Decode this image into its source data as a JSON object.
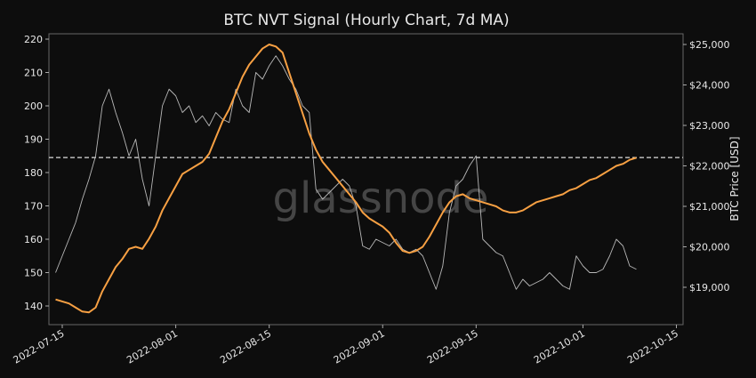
{
  "chart_data": {
    "type": "line",
    "title": "BTC NVT Signal (Hourly Chart, 7d MA)",
    "y2label": "BTC Price [USD]",
    "watermark": "glassnode",
    "x": [
      "2022-07-14",
      "2022-07-15",
      "2022-07-16",
      "2022-07-17",
      "2022-07-18",
      "2022-07-19",
      "2022-07-20",
      "2022-07-21",
      "2022-07-22",
      "2022-07-23",
      "2022-07-24",
      "2022-07-25",
      "2022-07-26",
      "2022-07-27",
      "2022-07-28",
      "2022-07-29",
      "2022-07-30",
      "2022-07-31",
      "2022-08-01",
      "2022-08-02",
      "2022-08-03",
      "2022-08-04",
      "2022-08-05",
      "2022-08-06",
      "2022-08-07",
      "2022-08-08",
      "2022-08-09",
      "2022-08-10",
      "2022-08-11",
      "2022-08-12",
      "2022-08-13",
      "2022-08-14",
      "2022-08-15",
      "2022-08-16",
      "2022-08-17",
      "2022-08-18",
      "2022-08-19",
      "2022-08-20",
      "2022-08-21",
      "2022-08-22",
      "2022-08-23",
      "2022-08-24",
      "2022-08-25",
      "2022-08-26",
      "2022-08-27",
      "2022-08-28",
      "2022-08-29",
      "2022-08-30",
      "2022-08-31",
      "2022-09-01",
      "2022-09-02",
      "2022-09-03",
      "2022-09-04",
      "2022-09-05",
      "2022-09-06",
      "2022-09-07",
      "2022-09-08",
      "2022-09-09",
      "2022-09-10",
      "2022-09-11",
      "2022-09-12",
      "2022-09-13",
      "2022-09-14",
      "2022-09-15",
      "2022-09-16",
      "2022-09-17",
      "2022-09-18",
      "2022-09-19",
      "2022-09-20",
      "2022-09-21",
      "2022-09-22",
      "2022-09-23",
      "2022-09-24",
      "2022-09-25",
      "2022-09-26",
      "2022-09-27",
      "2022-09-28",
      "2022-09-29",
      "2022-09-30",
      "2022-10-01",
      "2022-10-02",
      "2022-10-03",
      "2022-10-04",
      "2022-10-05",
      "2022-10-06",
      "2022-10-07",
      "2022-10-08",
      "2022-10-09"
    ],
    "series": [
      {
        "color": "#b8b8b8",
        "values": [
          150,
          155,
          160,
          165,
          172,
          178,
          185,
          200,
          205,
          198,
          192,
          185,
          190,
          178,
          170,
          185,
          200,
          205,
          203,
          198,
          200,
          195,
          197,
          194,
          198,
          196,
          195,
          205,
          200,
          198,
          210,
          208,
          212,
          215,
          212,
          208,
          205,
          200,
          198,
          175,
          172,
          174,
          176,
          178,
          176,
          170,
          158,
          157,
          160,
          159,
          158,
          160,
          157,
          156,
          157,
          155,
          150,
          145,
          152,
          168,
          176,
          178,
          182,
          185,
          160,
          158,
          156,
          155,
          150,
          145,
          148,
          146,
          147,
          148,
          150,
          148,
          146,
          145,
          155,
          152,
          150,
          150,
          151,
          155,
          160,
          158,
          152,
          151
        ]
      },
      {
        "color": "#f7a043",
        "axis": "y2",
        "values": [
          18700,
          18650,
          18600,
          18500,
          18400,
          18380,
          18500,
          18900,
          19200,
          19500,
          19700,
          19950,
          20000,
          19950,
          20200,
          20500,
          20900,
          21200,
          21500,
          21800,
          21900,
          22000,
          22100,
          22300,
          22700,
          23100,
          23400,
          23800,
          24200,
          24500,
          24700,
          24900,
          25000,
          24950,
          24800,
          24300,
          23800,
          23300,
          22800,
          22400,
          22100,
          21900,
          21700,
          21500,
          21300,
          21100,
          20850,
          20700,
          20600,
          20500,
          20350,
          20100,
          19900,
          19850,
          19900,
          20000,
          20250,
          20550,
          20850,
          21100,
          21250,
          21300,
          21200,
          21150,
          21100,
          21050,
          21000,
          20900,
          20850,
          20850,
          20900,
          21000,
          21100,
          21150,
          21200,
          21250,
          21300,
          21400,
          21450,
          21550,
          21650,
          21700,
          21800,
          21900,
          22000,
          22050,
          22150,
          22200
        ]
      }
    ],
    "xlim": [
      "2022-07-13",
      "2022-10-16"
    ],
    "xticks": [
      "2022-07-15",
      "2022-08-01",
      "2022-08-15",
      "2022-09-01",
      "2022-09-15",
      "2022-10-01",
      "2022-10-15"
    ],
    "ylim": [
      134.4,
      221.6
    ],
    "yticks": [
      140,
      150,
      160,
      170,
      180,
      190,
      200,
      210,
      220
    ],
    "y2lim": [
      18077,
      25264
    ],
    "y2ticks": [
      {
        "value": 19000,
        "label": "$19,000"
      },
      {
        "value": 20000,
        "label": "$20,000"
      },
      {
        "value": 21000,
        "label": "$21,000"
      },
      {
        "value": 22000,
        "label": "$22,000"
      },
      {
        "value": 23000,
        "label": "$23,000"
      },
      {
        "value": 24000,
        "label": "$24,000"
      },
      {
        "value": 25000,
        "label": "$25,000"
      }
    ],
    "reference_line": 184.5
  }
}
